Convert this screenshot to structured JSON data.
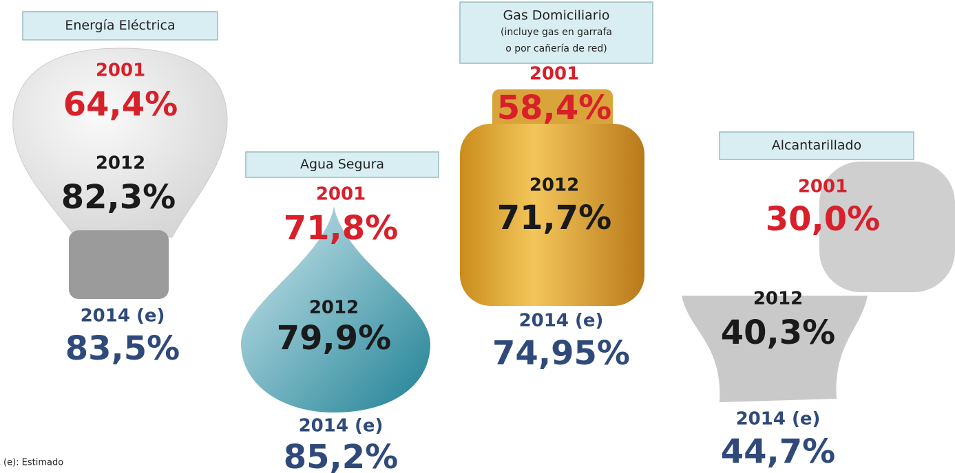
{
  "panels": [
    {
      "label": [
        "Energía Eléctrica"
      ],
      "entries": [
        {
          "year": "2001",
          "value": "64,4%"
        },
        {
          "year": "2012",
          "value": "82,3%"
        },
        {
          "year": "2014 (e)",
          "value": "83,5%"
        }
      ]
    },
    {
      "label": [
        "Agua Segura"
      ],
      "entries": [
        {
          "year": "2001",
          "value": "71,8%"
        },
        {
          "year": "2012",
          "value": "79,9%"
        },
        {
          "year": "2014 (e)",
          "value": "85,2%"
        }
      ]
    },
    {
      "label": [
        "Gas Domiciliario",
        "(incluye gas en garrafa",
        "o por cañería de red)"
      ],
      "entries": [
        {
          "year": "2001",
          "value": "58,4%"
        },
        {
          "year": "2012",
          "value": "71,7%"
        },
        {
          "year": "2014 (e)",
          "value": "74,95%"
        }
      ]
    },
    {
      "label": [
        "Alcantarillado"
      ],
      "entries": [
        {
          "year": "2001",
          "value": "30,0%"
        },
        {
          "year": "2012",
          "value": "40,3%"
        },
        {
          "year": "2014 (e)",
          "value": "44,7%"
        }
      ]
    }
  ],
  "footnote": "(e): Estimado"
}
